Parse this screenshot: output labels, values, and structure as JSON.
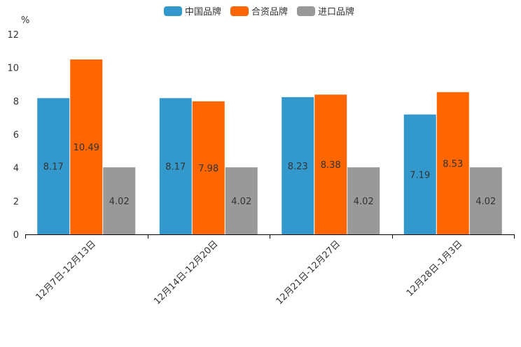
{
  "chart_data": {
    "type": "bar",
    "unit_label": "%",
    "categories": [
      "12月7日-12月13日",
      "12月14日-12月20日",
      "12月21日-12月27日",
      "12月28日-1月3日"
    ],
    "series": [
      {
        "name": "中国品牌",
        "color": "#3399cc",
        "values": [
          8.17,
          8.17,
          8.23,
          7.19
        ]
      },
      {
        "name": "合资品牌",
        "color": "#ff6600",
        "values": [
          10.49,
          7.98,
          8.38,
          8.53
        ]
      },
      {
        "name": "进口品牌",
        "color": "#999999",
        "values": [
          4.02,
          4.02,
          4.02,
          4.02
        ]
      }
    ],
    "ylim": [
      0,
      12
    ],
    "yticks": [
      0,
      2,
      4,
      6,
      8,
      10,
      12
    ],
    "legend_position": "top-center",
    "grid": false
  }
}
